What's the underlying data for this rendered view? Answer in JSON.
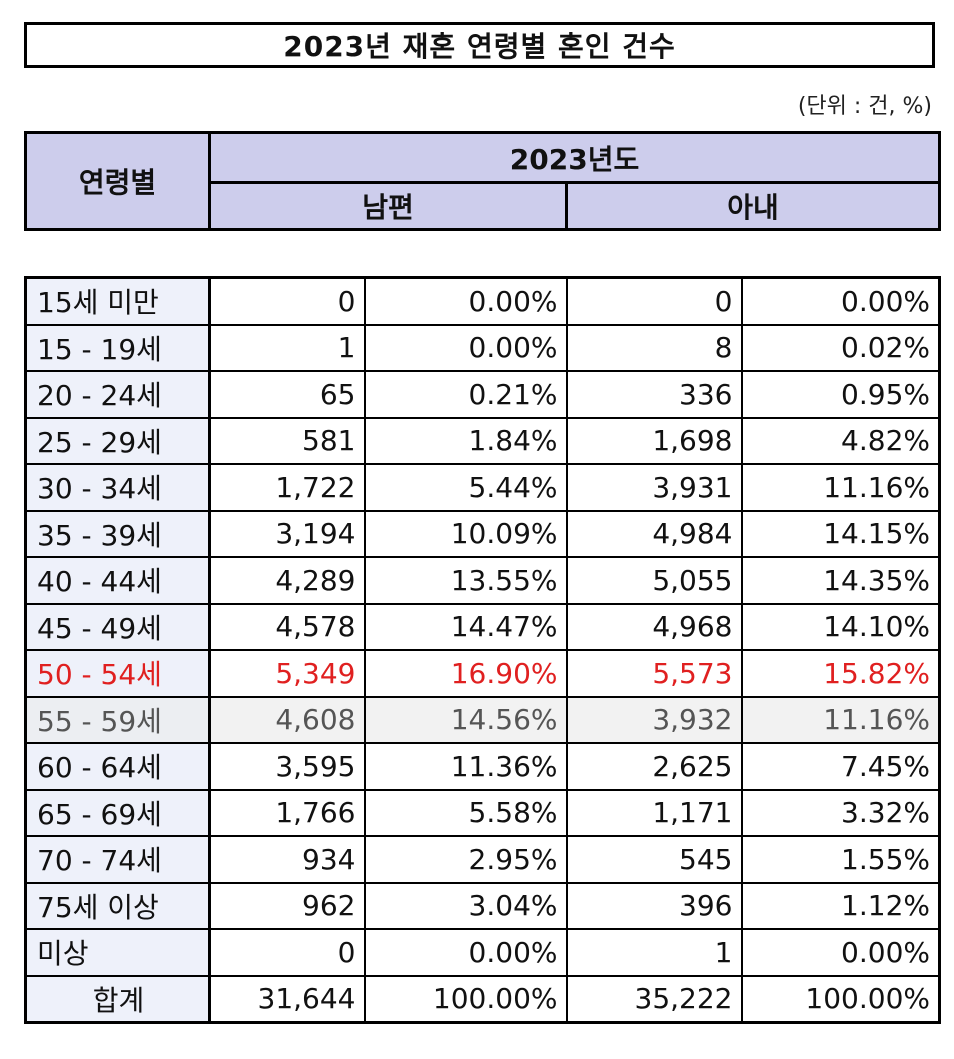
{
  "title": "2023년 재혼 연령별 혼인 건수",
  "unit": "(단위 : 건, %)",
  "header": {
    "age_label": "연령별",
    "year_label": "2023년도",
    "husband_label": "남편",
    "wife_label": "아내"
  },
  "rows": [
    {
      "age": "15세 미만",
      "husband_count": "0",
      "husband_pct": "0.00%",
      "wife_count": "0",
      "wife_pct": "0.00%"
    },
    {
      "age": "15 - 19세",
      "husband_count": "1",
      "husband_pct": "0.00%",
      "wife_count": "8",
      "wife_pct": "0.02%"
    },
    {
      "age": "20 - 24세",
      "husband_count": "65",
      "husband_pct": "0.21%",
      "wife_count": "336",
      "wife_pct": "0.95%"
    },
    {
      "age": "25 - 29세",
      "husband_count": "581",
      "husband_pct": "1.84%",
      "wife_count": "1,698",
      "wife_pct": "4.82%"
    },
    {
      "age": "30 - 34세",
      "husband_count": "1,722",
      "husband_pct": "5.44%",
      "wife_count": "3,931",
      "wife_pct": "11.16%"
    },
    {
      "age": "35 - 39세",
      "husband_count": "3,194",
      "husband_pct": "10.09%",
      "wife_count": "4,984",
      "wife_pct": "14.15%"
    },
    {
      "age": "40 - 44세",
      "husband_count": "4,289",
      "husband_pct": "13.55%",
      "wife_count": "5,055",
      "wife_pct": "14.35%"
    },
    {
      "age": "45 - 49세",
      "husband_count": "4,578",
      "husband_pct": "14.47%",
      "wife_count": "4,968",
      "wife_pct": "14.10%"
    },
    {
      "age": "50 - 54세",
      "husband_count": "5,349",
      "husband_pct": "16.90%",
      "wife_count": "5,573",
      "wife_pct": "15.82%"
    },
    {
      "age": "55 - 59세",
      "husband_count": "4,608",
      "husband_pct": "14.56%",
      "wife_count": "3,932",
      "wife_pct": "11.16%"
    },
    {
      "age": "60 - 64세",
      "husband_count": "3,595",
      "husband_pct": "11.36%",
      "wife_count": "2,625",
      "wife_pct": "7.45%"
    },
    {
      "age": "65 - 69세",
      "husband_count": "1,766",
      "husband_pct": "5.58%",
      "wife_count": "1,171",
      "wife_pct": "3.32%"
    },
    {
      "age": "70 - 74세",
      "husband_count": "934",
      "husband_pct": "2.95%",
      "wife_count": "545",
      "wife_pct": "1.55%"
    },
    {
      "age": "75세 이상",
      "husband_count": "962",
      "husband_pct": "3.04%",
      "wife_count": "396",
      "wife_pct": "1.12%"
    },
    {
      "age": "미상",
      "husband_count": "0",
      "husband_pct": "0.00%",
      "wife_count": "1",
      "wife_pct": "0.00%"
    },
    {
      "age": "합계",
      "husband_count": "31,644",
      "husband_pct": "100.00%",
      "wife_count": "35,222",
      "wife_pct": "100.00%"
    }
  ],
  "highlight_color": "#e02020",
  "header_color": "#cdcdec"
}
